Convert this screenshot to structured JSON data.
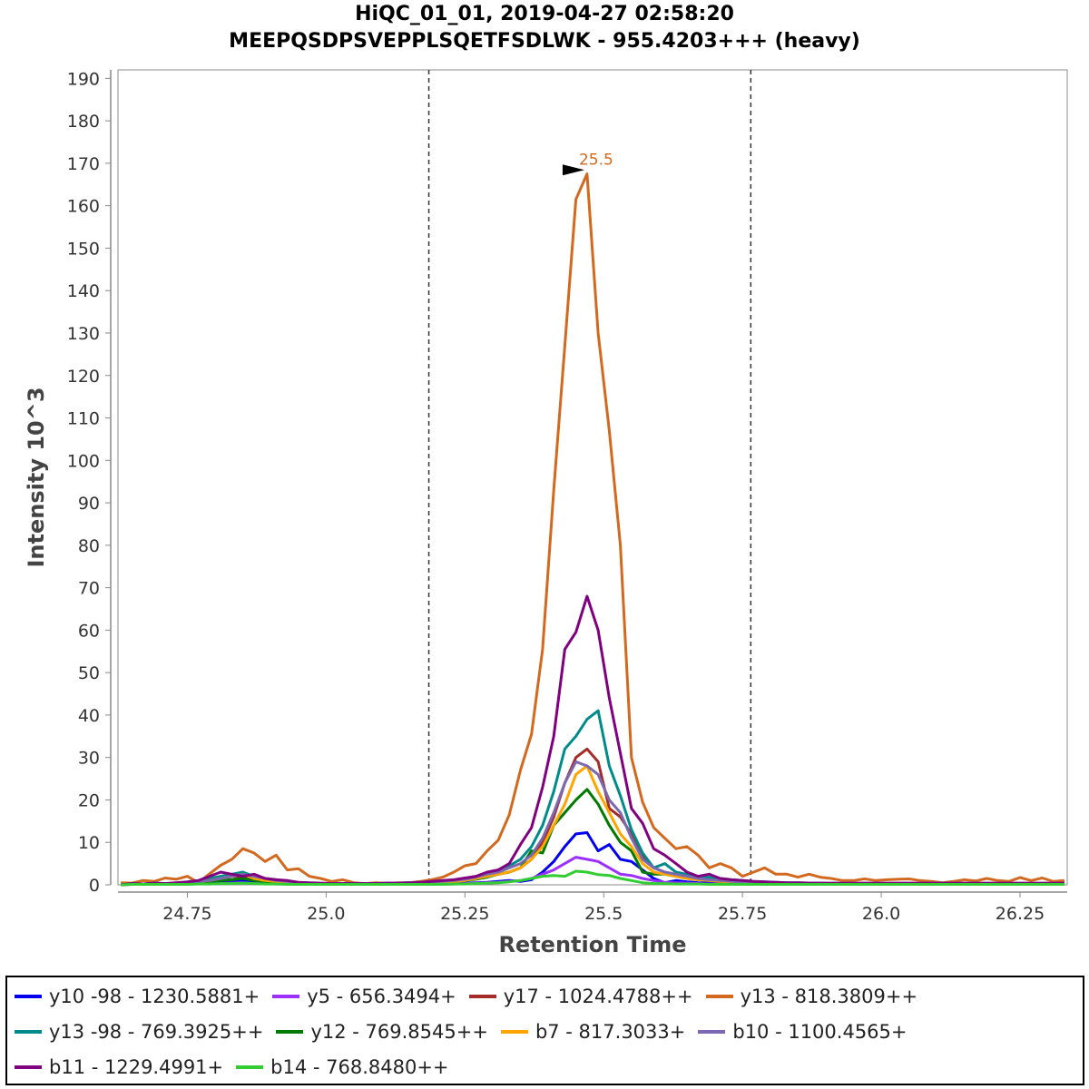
{
  "chart_data": {
    "type": "line",
    "title": "HiQC_01_01, 2019-04-27 02:58:20",
    "subtitle": "MEEPQSDPSVEPPLSQETFSDLWK - 955.4203+++ (heavy)",
    "xlabel": "Retention Time",
    "ylabel": "Intensity 10^3",
    "xlim": [
      24.625,
      26.335
    ],
    "ylim": [
      0,
      192
    ],
    "x_ticks": [
      "24.75",
      "25.0",
      "25.25",
      "25.5",
      "25.75",
      "26.0",
      "26.25"
    ],
    "y_ticks": [
      "0",
      "10",
      "20",
      "30",
      "40",
      "50",
      "60",
      "70",
      "80",
      "90",
      "100",
      "110",
      "120",
      "130",
      "140",
      "150",
      "160",
      "170",
      "180",
      "190"
    ],
    "grid": false,
    "legend_placement": "bottom",
    "integration_bounds": [
      25.185,
      25.765
    ],
    "peak_annotation": {
      "x": 25.475,
      "y": 168,
      "label": "25.5",
      "color": "#d2691e"
    },
    "x": [
      24.63,
      24.65,
      24.67,
      24.69,
      24.71,
      24.73,
      24.75,
      24.77,
      24.79,
      24.81,
      24.83,
      24.85,
      24.87,
      24.89,
      24.91,
      24.93,
      24.95,
      24.97,
      24.99,
      25.01,
      25.03,
      25.05,
      25.07,
      25.09,
      25.11,
      25.13,
      25.15,
      25.17,
      25.19,
      25.21,
      25.23,
      25.25,
      25.27,
      25.29,
      25.31,
      25.33,
      25.35,
      25.37,
      25.39,
      25.41,
      25.43,
      25.45,
      25.47,
      25.49,
      25.51,
      25.53,
      25.55,
      25.57,
      25.59,
      25.61,
      25.63,
      25.65,
      25.67,
      25.69,
      25.71,
      25.73,
      25.75,
      25.77,
      25.79,
      25.81,
      25.83,
      25.85,
      25.87,
      25.89,
      25.91,
      25.93,
      25.95,
      25.97,
      25.99,
      26.01,
      26.03,
      26.05,
      26.07,
      26.09,
      26.11,
      26.13,
      26.15,
      26.17,
      26.19,
      26.21,
      26.23,
      26.25,
      26.27,
      26.29,
      26.31,
      26.33
    ],
    "series": [
      {
        "name": "y10 -98 - 1230.5881+",
        "color": "#0000ee",
        "values": [
          0,
          0.2,
          0.1,
          0.3,
          0.1,
          0.2,
          0.4,
          0.6,
          0.3,
          0.5,
          0.8,
          1,
          0.6,
          0.5,
          0.4,
          0.3,
          0.2,
          0.2,
          0.1,
          0.2,
          0.1,
          0.1,
          0.2,
          0.1,
          0.1,
          0.2,
          0.2,
          0.2,
          0.3,
          0.3,
          0.3,
          0.4,
          0.5,
          0.6,
          0.8,
          1,
          0.8,
          1.2,
          3,
          5.5,
          9,
          12,
          12.3,
          8,
          9.5,
          6,
          5.5,
          3.5,
          1.5,
          0.5,
          1,
          0.7,
          0.5,
          0.4,
          0.3,
          0.3,
          0.2,
          0.2,
          0.2,
          0.1,
          0.1,
          0.1,
          0.1,
          0.1,
          0.1,
          0.1,
          0.1,
          0.1,
          0.1,
          0.1,
          0.1,
          0.1,
          0.1,
          0.1,
          0.1,
          0.1,
          0.1,
          0.1,
          0.1,
          0.1,
          0.1,
          0.1,
          0.1,
          0.1,
          0.1,
          0.1
        ]
      },
      {
        "name": "y5 - 656.3494+",
        "color": "#9b30ff",
        "values": [
          0,
          0.1,
          0.1,
          0.1,
          0.1,
          0.1,
          0.2,
          0.3,
          0.2,
          0.3,
          0.4,
          0.5,
          0.3,
          0.3,
          0.2,
          0.2,
          0.1,
          0.1,
          0.1,
          0.1,
          0.1,
          0.1,
          0.1,
          0.1,
          0.1,
          0.1,
          0.1,
          0.1,
          0.2,
          0.2,
          0.2,
          0.3,
          0.4,
          0.5,
          0.6,
          0.8,
          1,
          1.5,
          2.5,
          3.5,
          5,
          6.5,
          6,
          5.5,
          4,
          2.5,
          2.2,
          1.5,
          1,
          0.6,
          0.5,
          0.4,
          0.3,
          0.2,
          0.2,
          0.2,
          0.1,
          0.1,
          0.1,
          0.1,
          0.1,
          0.1,
          0.1,
          0.1,
          0.1,
          0.1,
          0.1,
          0.1,
          0.1,
          0.1,
          0.1,
          0.1,
          0.1,
          0.1,
          0.1,
          0.1,
          0.1,
          0.1,
          0.1,
          0.1,
          0.1,
          0.1,
          0.1,
          0.1,
          0.1,
          0.1
        ]
      },
      {
        "name": "y17 - 1024.4788++",
        "color": "#a52a2a",
        "values": [
          0,
          0.2,
          0.2,
          0.3,
          0.2,
          0.3,
          0.4,
          0.8,
          1,
          1.5,
          1.2,
          2,
          1.5,
          1,
          0.8,
          0.6,
          0.4,
          0.3,
          0.3,
          0.2,
          0.2,
          0.2,
          0.2,
          0.2,
          0.3,
          0.3,
          0.3,
          0.4,
          0.5,
          0.6,
          0.8,
          1,
          1.5,
          2,
          2.5,
          3,
          4,
          6,
          10,
          16,
          24,
          30,
          32,
          29,
          18,
          16,
          12,
          7,
          4,
          3,
          2.5,
          2,
          1.5,
          1,
          0.8,
          0.7,
          0.6,
          0.5,
          0.4,
          0.3,
          0.3,
          0.3,
          0.2,
          0.2,
          0.2,
          0.2,
          0.2,
          0.2,
          0.2,
          0.2,
          0.2,
          0.2,
          0.2,
          0.2,
          0.2,
          0.2,
          0.2,
          0.2,
          0.2,
          0.2,
          0.2,
          0.2,
          0.2,
          0.2,
          0.2,
          0.2
        ]
      },
      {
        "name": "y13 - 818.3809++",
        "color": "#d2691e",
        "values": [
          0.5,
          0.4,
          1,
          0.8,
          1.6,
          1.3,
          2,
          0.5,
          2.6,
          4.6,
          6,
          8.5,
          7.5,
          5.5,
          7,
          3.5,
          3.8,
          2,
          1.5,
          0.8,
          1.2,
          0.5,
          0.3,
          0.5,
          0.3,
          0.5,
          0.5,
          0.8,
          1.2,
          1.8,
          3,
          4.5,
          5,
          8,
          10.5,
          16.5,
          27,
          35.5,
          55.5,
          93,
          127,
          161.5,
          167.5,
          130,
          107,
          80,
          30,
          19.5,
          13.5,
          11,
          8.5,
          9,
          7,
          4,
          5,
          4,
          2,
          3,
          4,
          2.5,
          2.5,
          1.8,
          2.5,
          1.8,
          1.5,
          1,
          1,
          1.4,
          1,
          1.2,
          1.3,
          1.4,
          1,
          0.8,
          0.5,
          0.8,
          1.2,
          0.9,
          1.5,
          1,
          0.8,
          1.7,
          1,
          1.6,
          0.8,
          1
        ]
      },
      {
        "name": "y13 -98 - 769.3925++",
        "color": "#008b8b",
        "values": [
          0,
          0.3,
          0.2,
          0.4,
          0.3,
          0.4,
          0.6,
          1,
          1.5,
          2,
          2.5,
          3,
          2,
          1.5,
          1.2,
          0.8,
          0.5,
          0.4,
          0.3,
          0.3,
          0.3,
          0.3,
          0.3,
          0.3,
          0.4,
          0.4,
          0.5,
          0.6,
          0.7,
          0.8,
          1,
          1.3,
          1.8,
          2.5,
          3,
          4.5,
          6,
          9,
          14,
          22,
          32,
          35,
          39,
          41,
          28,
          21,
          13,
          7.5,
          4,
          5,
          3,
          2.5,
          2,
          1.8,
          1.5,
          1.2,
          1,
          0.8,
          0.7,
          0.6,
          0.5,
          0.5,
          0.4,
          0.4,
          0.3,
          0.3,
          0.3,
          0.3,
          0.3,
          0.3,
          0.3,
          0.3,
          0.3,
          0.3,
          0.3,
          0.3,
          0.3,
          0.3,
          0.3,
          0.3,
          0.3,
          0.3,
          0.3,
          0.3,
          0.3,
          0.3
        ]
      },
      {
        "name": "y12 - 769.8545++",
        "color": "#007a00",
        "values": [
          0,
          0.2,
          0.2,
          0.3,
          0.2,
          0.3,
          0.4,
          0.6,
          0.8,
          1,
          1.2,
          1.5,
          1,
          0.8,
          0.6,
          0.5,
          0.3,
          0.3,
          0.2,
          0.2,
          0.2,
          0.2,
          0.2,
          0.2,
          0.3,
          0.3,
          0.3,
          0.4,
          0.5,
          0.6,
          0.8,
          1,
          1.3,
          1.8,
          2.5,
          3,
          4,
          8,
          7.5,
          14,
          17,
          20,
          22.5,
          19,
          14,
          10,
          8,
          3,
          2.5,
          2.5,
          2,
          1.5,
          1.2,
          1,
          0.8,
          0.7,
          0.6,
          0.5,
          0.4,
          0.3,
          0.3,
          0.3,
          0.2,
          0.2,
          0.2,
          0.2,
          0.2,
          0.2,
          0.2,
          0.2,
          0.2,
          0.2,
          0.2,
          0.2,
          0.2,
          0.2,
          0.2,
          0.2,
          0.2,
          0.2,
          0.2,
          0.2,
          0.2,
          0.2,
          0.2,
          0.2
        ]
      },
      {
        "name": "b7 - 817.3033+",
        "color": "#ffa500",
        "values": [
          0,
          0.2,
          0.2,
          0.3,
          0.2,
          0.3,
          0.4,
          0.8,
          1,
          1.5,
          2,
          2.5,
          1.5,
          1,
          0.8,
          0.6,
          0.4,
          0.3,
          0.3,
          0.2,
          0.2,
          0.2,
          0.2,
          0.2,
          0.3,
          0.3,
          0.3,
          0.4,
          0.5,
          0.6,
          0.8,
          1,
          1.5,
          2,
          2.5,
          3,
          4,
          6,
          9,
          14,
          19,
          26,
          28,
          22,
          17,
          12,
          9,
          5,
          3,
          2.5,
          2,
          1.5,
          1.2,
          1,
          0.8,
          0.7,
          0.6,
          0.5,
          0.4,
          0.3,
          0.3,
          0.3,
          0.2,
          0.2,
          0.2,
          0.2,
          0.2,
          0.2,
          0.2,
          0.2,
          0.2,
          0.2,
          0.2,
          0.2,
          0.2,
          0.2,
          0.2,
          0.2,
          0.2,
          0.2,
          0.2,
          0.2,
          0.2,
          0.2,
          0.2,
          0.2
        ]
      },
      {
        "name": "b10 - 1100.4565+",
        "color": "#7b68b0",
        "values": [
          0,
          0.2,
          0.2,
          0.3,
          0.2,
          0.3,
          0.4,
          0.8,
          1,
          1.5,
          2,
          2.5,
          2,
          1.5,
          1,
          0.8,
          0.5,
          0.4,
          0.3,
          0.3,
          0.3,
          0.3,
          0.3,
          0.3,
          0.4,
          0.4,
          0.5,
          0.6,
          0.7,
          0.8,
          1,
          1.3,
          1.8,
          2.5,
          3,
          4,
          5,
          7,
          11,
          17,
          24,
          29,
          28,
          26,
          20,
          17,
          11,
          6,
          4,
          3,
          2.5,
          2,
          1.5,
          1.2,
          1,
          0.8,
          0.7,
          0.6,
          0.5,
          0.4,
          0.4,
          0.3,
          0.3,
          0.3,
          0.3,
          0.3,
          0.3,
          0.3,
          0.3,
          0.3,
          0.3,
          0.3,
          0.3,
          0.3,
          0.3,
          0.3,
          0.3,
          0.3,
          0.3,
          0.3,
          0.3,
          0.3,
          0.3,
          0.3,
          0.3,
          0.3
        ]
      },
      {
        "name": "b11 - 1229.4991+",
        "color": "#800080",
        "values": [
          0,
          0.3,
          0.2,
          0.4,
          0.3,
          0.5,
          0.7,
          1,
          2,
          3,
          2.5,
          2,
          2.5,
          1.5,
          1.2,
          1,
          0.6,
          0.5,
          0.4,
          0.3,
          0.3,
          0.3,
          0.3,
          0.3,
          0.4,
          0.4,
          0.5,
          0.6,
          0.8,
          1,
          1.2,
          1.6,
          2,
          3,
          3.5,
          5,
          9.5,
          13.5,
          23,
          35,
          55.5,
          59.5,
          68,
          60,
          44,
          31,
          18,
          14.5,
          8.5,
          7,
          5,
          3,
          2,
          2.5,
          1.5,
          1.2,
          1,
          0.8,
          0.7,
          0.6,
          0.5,
          0.5,
          0.4,
          0.4,
          0.4,
          0.4,
          0.4,
          0.4,
          0.4,
          0.4,
          0.4,
          0.4,
          0.4,
          0.4,
          0.4,
          0.4,
          0.4,
          0.4,
          0.4,
          0.4,
          0.4,
          0.4,
          0.4,
          0.4,
          0.4,
          0.4
        ]
      },
      {
        "name": "b14 - 768.8480++",
        "color": "#32cd32",
        "values": [
          0,
          0.1,
          0.1,
          0.1,
          0.1,
          0.1,
          0.1,
          0.2,
          0.2,
          0.3,
          0.3,
          0.4,
          0.3,
          0.2,
          0.2,
          0.1,
          0.1,
          0.1,
          0.1,
          0.1,
          0.1,
          0.1,
          0.1,
          0.1,
          0.1,
          0.1,
          0.1,
          0.1,
          0.1,
          0.1,
          0.2,
          0.2,
          0.3,
          0.4,
          0.5,
          0.7,
          1,
          1.5,
          2,
          2.2,
          2,
          3.2,
          3,
          2.4,
          2.2,
          1.5,
          1,
          0.5,
          0.3,
          0.3,
          0.2,
          0.2,
          0.2,
          0.1,
          0.1,
          0.1,
          0.1,
          0.1,
          0.1,
          0.1,
          0.1,
          0.1,
          0.1,
          0.1,
          0.1,
          0.1,
          0.1,
          0.1,
          0.1,
          0.1,
          0.1,
          0.1,
          0.1,
          0.1,
          0.1,
          0.1,
          0.1,
          0.1,
          0.1,
          0.1,
          0.1,
          0.1,
          0.1,
          0.1,
          0.1,
          0.1
        ]
      }
    ]
  },
  "legend": {
    "rows": [
      [
        0,
        1,
        2,
        3
      ],
      [
        4,
        5,
        6,
        7
      ],
      [
        8,
        9
      ]
    ]
  }
}
